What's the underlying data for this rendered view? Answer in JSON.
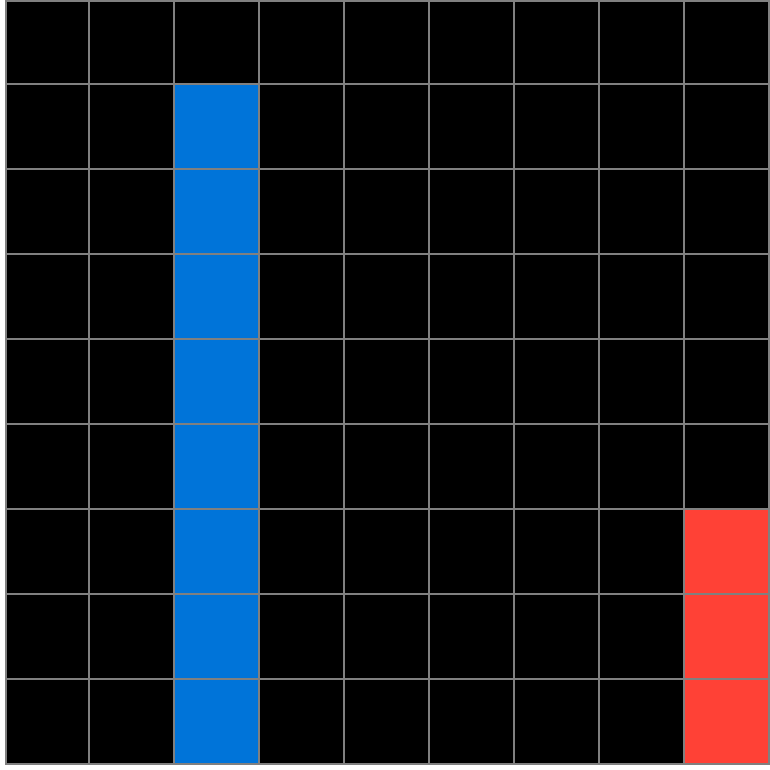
{
  "board": {
    "rows": 9,
    "cols": 9,
    "colors": {
      "background": "#000000",
      "gridline": "#808080",
      "blue": "#0074D9",
      "red": "#FF4136"
    },
    "cells": [
      [
        "black",
        "black",
        "black",
        "black",
        "black",
        "black",
        "black",
        "black",
        "black"
      ],
      [
        "black",
        "black",
        "blue",
        "black",
        "black",
        "black",
        "black",
        "black",
        "black"
      ],
      [
        "black",
        "black",
        "blue",
        "black",
        "black",
        "black",
        "black",
        "black",
        "black"
      ],
      [
        "black",
        "black",
        "blue",
        "black",
        "black",
        "black",
        "black",
        "black",
        "black"
      ],
      [
        "black",
        "black",
        "blue",
        "black",
        "black",
        "black",
        "black",
        "black",
        "black"
      ],
      [
        "black",
        "black",
        "blue",
        "black",
        "black",
        "black",
        "black",
        "black",
        "black"
      ],
      [
        "black",
        "black",
        "blue",
        "black",
        "black",
        "black",
        "black",
        "black",
        "red"
      ],
      [
        "black",
        "black",
        "blue",
        "black",
        "black",
        "black",
        "black",
        "black",
        "red"
      ],
      [
        "black",
        "black",
        "blue",
        "black",
        "black",
        "black",
        "black",
        "black",
        "red"
      ]
    ]
  }
}
